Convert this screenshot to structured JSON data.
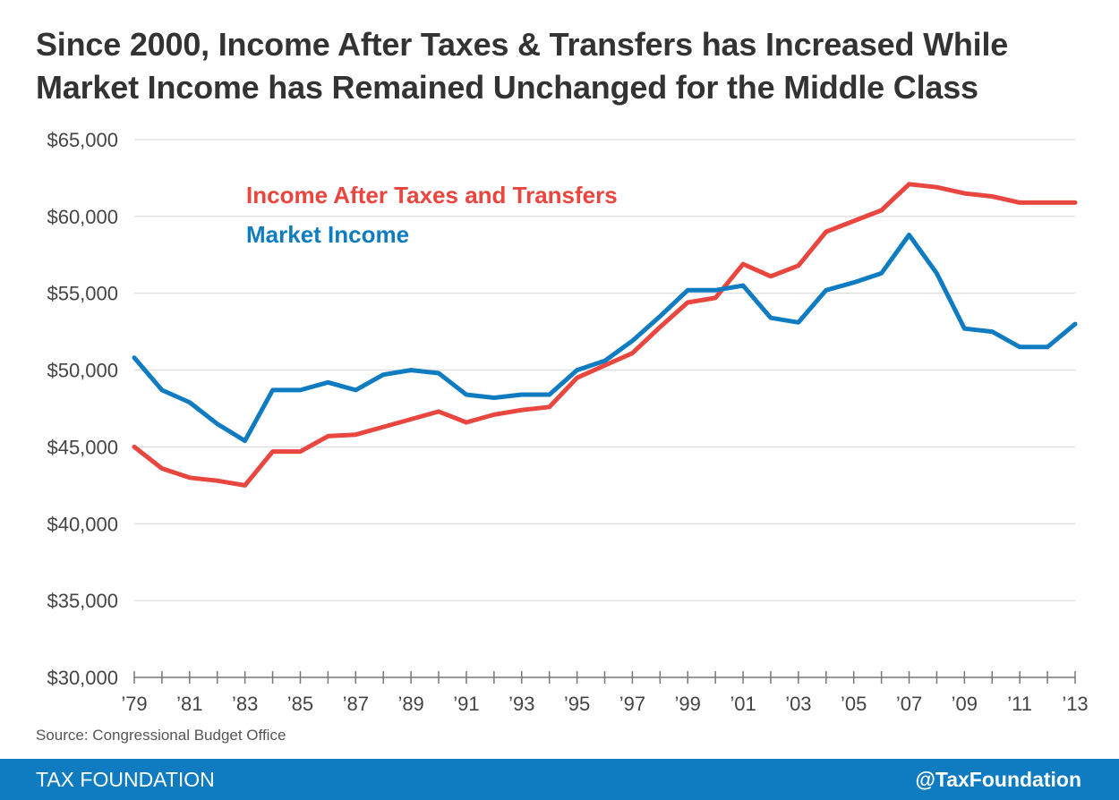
{
  "header": {
    "title_line1": "Since 2000, Income After Taxes & Transfers has Increased While",
    "title_line2": "Market Income has Remained Unchanged for the Middle Class"
  },
  "chart_data": {
    "type": "line",
    "title": "Since 2000, Income After Taxes & Transfers has Increased While Market Income has Remained Unchanged for the Middle Class",
    "xlabel": "",
    "ylabel": "",
    "x": [
      1979,
      1980,
      1981,
      1982,
      1983,
      1984,
      1985,
      1986,
      1987,
      1988,
      1989,
      1990,
      1991,
      1992,
      1993,
      1994,
      1995,
      1996,
      1997,
      1998,
      1999,
      2000,
      2001,
      2002,
      2003,
      2004,
      2005,
      2006,
      2007,
      2008,
      2009,
      2010,
      2011,
      2012,
      2013
    ],
    "xtick_labels": [
      "’79",
      "’81",
      "’83",
      "’85",
      "’87",
      "’89",
      "’91",
      "’93",
      "’95",
      "’97",
      "’99",
      "’01",
      "’03",
      "’05",
      "’07",
      "’09",
      "’11",
      "’13"
    ],
    "ylim": [
      30000,
      65000
    ],
    "yticks": [
      30000,
      35000,
      40000,
      45000,
      50000,
      55000,
      60000,
      65000
    ],
    "ytick_labels": [
      "$30,000",
      "$35,000",
      "$40,000",
      "$45,000",
      "$50,000",
      "$55,000",
      "$60,000",
      "$65,000"
    ],
    "grid": true,
    "series": [
      {
        "name": "Income After Taxes and Transfers",
        "color": "#e8463f",
        "values": [
          45000,
          43600,
          43000,
          42800,
          42500,
          44700,
          44700,
          45700,
          45800,
          46300,
          46800,
          47300,
          46600,
          47100,
          47400,
          47600,
          49500,
          50300,
          51100,
          52800,
          54400,
          54700,
          56900,
          56100,
          56800,
          59000,
          59700,
          60400,
          62100,
          61900,
          61500,
          61300,
          60900,
          60900,
          60900
        ]
      },
      {
        "name": "Market Income",
        "color": "#0f7cc2",
        "values": [
          50800,
          48700,
          47900,
          46500,
          45400,
          48700,
          48700,
          49200,
          48700,
          49700,
          50000,
          49800,
          48400,
          48200,
          48400,
          48400,
          50000,
          50600,
          51900,
          53500,
          55200,
          55200,
          55500,
          53400,
          53100,
          55200,
          55700,
          56300,
          58800,
          56300,
          52700,
          52500,
          51500,
          51500,
          53000
        ]
      }
    ]
  },
  "legend": {
    "after_tax_label": "Income After Taxes and Transfers",
    "market_label": "Market Income"
  },
  "source": "Source: Congressional Budget Office",
  "footer": {
    "brand": "TAX FOUNDATION",
    "handle": "@TaxFoundation"
  },
  "colors": {
    "after_tax": "#e8463f",
    "market": "#0f7cc2",
    "footer_bg": "#0f7cc2",
    "title_text": "#333333"
  }
}
